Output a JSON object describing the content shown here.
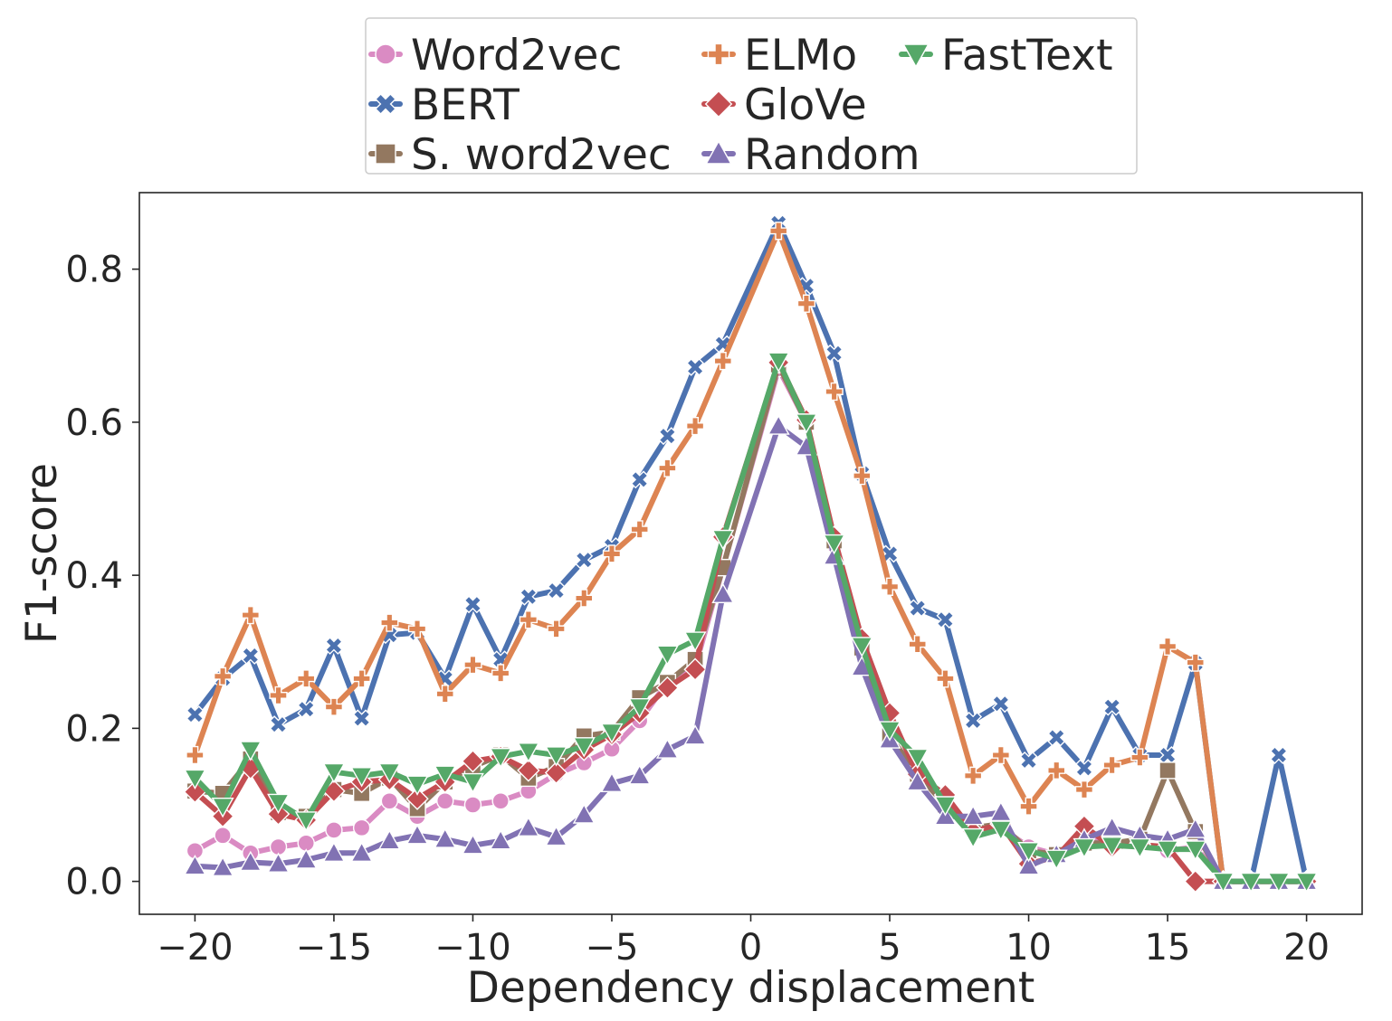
{
  "chart_data": {
    "type": "line",
    "title": "",
    "xlabel": "Dependency displacement",
    "ylabel": "F1-score",
    "xlim": [
      -22,
      22
    ],
    "ylim": [
      -0.043,
      0.9
    ],
    "xticks": [
      -20,
      -15,
      -10,
      -5,
      0,
      5,
      10,
      15,
      20
    ],
    "xtick_labels": [
      "−20",
      "−15",
      "−10",
      "−5",
      "0",
      "5",
      "10",
      "15",
      "20"
    ],
    "yticks": [
      0.0,
      0.2,
      0.4,
      0.6,
      0.8
    ],
    "ytick_labels": [
      "0.0",
      "0.2",
      "0.4",
      "0.6",
      "0.8"
    ],
    "grid": false,
    "legend_position": "top-center",
    "legend_columns": 3,
    "x": [
      -20,
      -19,
      -18,
      -17,
      -16,
      -15,
      -14,
      -13,
      -12,
      -11,
      -10,
      -9,
      -8,
      -7,
      -6,
      -5,
      -4,
      -3,
      -2,
      -1,
      1,
      2,
      3,
      4,
      5,
      6,
      7,
      8,
      9,
      10,
      11,
      12,
      13,
      14,
      15,
      16,
      17,
      18,
      19,
      20
    ],
    "series": [
      {
        "name": "Word2vec",
        "color": "#da8bc3",
        "marker": "circle",
        "values": [
          0.04,
          0.06,
          0.037,
          0.045,
          0.05,
          0.067,
          0.07,
          0.105,
          0.085,
          0.105,
          0.1,
          0.105,
          0.118,
          0.14,
          0.155,
          0.173,
          0.21,
          0.26,
          0.28,
          0.41,
          0.67,
          0.6,
          0.44,
          0.3,
          0.19,
          0.14,
          0.1,
          0.07,
          0.07,
          0.045,
          0.035,
          0.055,
          0.05,
          0.05,
          0.04,
          0.045,
          0,
          0,
          0,
          0
        ]
      },
      {
        "name": "BERT",
        "color": "#4c72b0",
        "marker": "x",
        "values": [
          0.218,
          0.265,
          0.295,
          0.205,
          0.225,
          0.308,
          0.213,
          0.322,
          0.325,
          0.265,
          0.362,
          0.29,
          0.372,
          0.38,
          0.42,
          0.438,
          0.525,
          0.582,
          0.672,
          0.702,
          0.86,
          0.778,
          0.69,
          0.533,
          0.428,
          0.357,
          0.342,
          0.21,
          0.232,
          0.158,
          0.188,
          0.148,
          0.228,
          0.165,
          0.165,
          0.285,
          0,
          0,
          0.165,
          0
        ]
      },
      {
        "name": "S. word2vec",
        "color": "#937860",
        "marker": "square",
        "values": [
          0.118,
          0.115,
          0.16,
          0.09,
          0.085,
          0.12,
          0.115,
          0.135,
          0.095,
          0.13,
          0.15,
          0.165,
          0.135,
          0.15,
          0.19,
          0.195,
          0.24,
          0.26,
          0.29,
          0.41,
          0.675,
          0.6,
          0.445,
          0.305,
          0.19,
          0.14,
          0.1,
          0.07,
          0.075,
          0.04,
          0.035,
          0.05,
          0.05,
          0.055,
          0.145,
          0.065,
          0,
          0,
          0,
          0
        ]
      },
      {
        "name": "ELMo",
        "color": "#dd8452",
        "marker": "plus",
        "values": [
          0.165,
          0.268,
          0.348,
          0.243,
          0.265,
          0.228,
          0.265,
          0.338,
          0.33,
          0.245,
          0.283,
          0.272,
          0.342,
          0.33,
          0.37,
          0.428,
          0.46,
          0.54,
          0.595,
          0.68,
          0.85,
          0.755,
          0.64,
          0.53,
          0.385,
          0.31,
          0.265,
          0.138,
          0.165,
          0.098,
          0.145,
          0.12,
          0.152,
          0.162,
          0.307,
          0.286,
          0,
          0,
          0,
          0
        ]
      },
      {
        "name": "GloVe",
        "color": "#c44e52",
        "marker": "diamond",
        "values": [
          0.117,
          0.085,
          0.148,
          0.088,
          0.08,
          0.118,
          0.13,
          0.133,
          0.108,
          0.13,
          0.157,
          0.163,
          0.145,
          0.142,
          0.172,
          0.192,
          0.22,
          0.253,
          0.277,
          0.45,
          0.678,
          0.603,
          0.45,
          0.317,
          0.22,
          0.14,
          0.113,
          0.065,
          0.075,
          0.023,
          0.032,
          0.072,
          0.045,
          0.048,
          0.045,
          0,
          0,
          0,
          0,
          0
        ]
      },
      {
        "name": "Random",
        "color": "#8172b3",
        "marker": "triangle-up",
        "values": [
          0.02,
          0.018,
          0.025,
          0.023,
          0.028,
          0.037,
          0.037,
          0.053,
          0.06,
          0.055,
          0.047,
          0.053,
          0.07,
          0.058,
          0.087,
          0.128,
          0.138,
          0.172,
          0.19,
          0.375,
          0.595,
          0.568,
          0.425,
          0.28,
          0.185,
          0.13,
          0.085,
          0.085,
          0.09,
          0.02,
          0.035,
          0.055,
          0.07,
          0.06,
          0.055,
          0.068,
          0,
          0,
          0,
          0
        ]
      },
      {
        "name": "FastText",
        "color": "#55a868",
        "marker": "triangle-down",
        "values": [
          0.135,
          0.098,
          0.172,
          0.103,
          0.08,
          0.143,
          0.138,
          0.143,
          0.127,
          0.14,
          0.13,
          0.163,
          0.17,
          0.165,
          0.177,
          0.195,
          0.228,
          0.297,
          0.315,
          0.448,
          0.68,
          0.6,
          0.442,
          0.308,
          0.198,
          0.162,
          0.1,
          0.058,
          0.068,
          0.04,
          0.03,
          0.045,
          0.047,
          0.045,
          0.042,
          0.042,
          0,
          0,
          0,
          0
        ]
      }
    ]
  }
}
